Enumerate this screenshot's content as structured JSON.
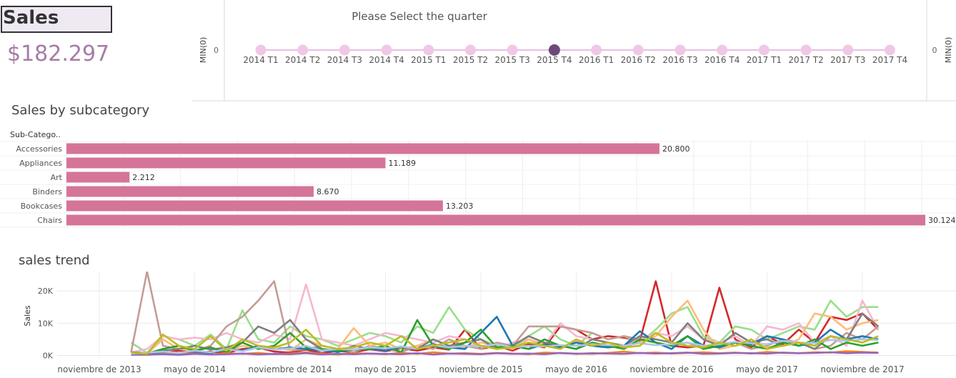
{
  "kpi": {
    "title": "Sales",
    "value": "$182.297"
  },
  "quarter_selector": {
    "title": "Please Select the quarter",
    "axis_label": "MIN(0)",
    "zero_label": "0",
    "quarters": [
      "2014 T1",
      "2014 T2",
      "2014 T3",
      "2014 T4",
      "2015 T1",
      "2015 T2",
      "2015 T3",
      "2015 T4",
      "2016 T1",
      "2016 T2",
      "2016 T3",
      "2016 T4",
      "2017 T1",
      "2017 T2",
      "2017 T3",
      "2017 T4"
    ],
    "selected": "2015 T4",
    "colors": {
      "dot": "#f0c8e6",
      "selected": "#6e4a7b",
      "line": "#e6bfe0"
    }
  },
  "subcategory_chart": {
    "title": "Sales by subcategory",
    "column_header": "Sub-Catego.."
  },
  "trend_chart": {
    "title": "sales trend"
  },
  "chart_data": [
    {
      "type": "bar",
      "orientation": "horizontal",
      "title": "Sales by subcategory",
      "row_header": "Sub-Catego..",
      "categories": [
        "Accessories",
        "Appliances",
        "Art",
        "Binders",
        "Bookcases",
        "Chairs"
      ],
      "values": [
        20800,
        11189,
        2212,
        8670,
        13203,
        30124
      ],
      "value_labels": [
        "20.800",
        "11.189",
        "2.212",
        "8.670",
        "13.203",
        "30.124"
      ],
      "xlim": [
        0,
        31000
      ],
      "color": "#d57499",
      "grid": true
    },
    {
      "type": "line",
      "title": "sales trend",
      "ylabel": "Sales",
      "ylim": [
        -1000,
        26000
      ],
      "yticks": [
        0,
        10000,
        20000
      ],
      "ytick_labels": [
        "0K",
        "10K",
        "20K"
      ],
      "x_labels": [
        "noviembre de 2013",
        "mayo de 2014",
        "noviembre de 2014",
        "mayo de 2015",
        "noviembre de 2015",
        "mayo de 2016",
        "noviembre de 2016",
        "mayo de 2017",
        "noviembre de 2017"
      ],
      "x_months": [
        "2014-01",
        "2014-02",
        "2014-03",
        "2014-04",
        "2014-05",
        "2014-06",
        "2014-07",
        "2014-08",
        "2014-09",
        "2014-10",
        "2014-11",
        "2014-12",
        "2015-01",
        "2015-02",
        "2015-03",
        "2015-04",
        "2015-05",
        "2015-06",
        "2015-07",
        "2015-08",
        "2015-09",
        "2015-10",
        "2015-11",
        "2015-12",
        "2016-01",
        "2016-02",
        "2016-03",
        "2016-04",
        "2016-05",
        "2016-06",
        "2016-07",
        "2016-08",
        "2016-09",
        "2016-10",
        "2016-11",
        "2016-12",
        "2017-01",
        "2017-02",
        "2017-03",
        "2017-04",
        "2017-05",
        "2017-06",
        "2017-07",
        "2017-08",
        "2017-09",
        "2017-10",
        "2017-11",
        "2017-12"
      ],
      "grid": true,
      "series": [
        {
          "color": "#d62728",
          "values": [
            500,
            400,
            700,
            1500,
            900,
            1200,
            800,
            2000,
            2500,
            1200,
            900,
            1800,
            700,
            1400,
            1000,
            1900,
            1300,
            2200,
            1500,
            2500,
            1800,
            8000,
            2000,
            3000,
            1500,
            3500,
            2500,
            9000,
            8000,
            5000,
            6000,
            5500,
            4500,
            23000,
            3000,
            2500,
            3000,
            21000,
            5000,
            2500,
            6000,
            3500,
            8000,
            4000,
            12000,
            11000,
            13000,
            8000
          ]
        },
        {
          "color": "#98df8a",
          "values": [
            4000,
            800,
            6000,
            5000,
            3000,
            6500,
            2000,
            14000,
            5000,
            4000,
            9000,
            6000,
            5000,
            3000,
            5000,
            7000,
            6000,
            4000,
            9000,
            7000,
            15000,
            8000,
            5000,
            3000,
            2000,
            6000,
            9000,
            5000,
            3000,
            7000,
            5000,
            6000,
            4000,
            8000,
            13000,
            15000,
            6000,
            4000,
            9000,
            8000,
            5000,
            7000,
            9000,
            8000,
            17000,
            12000,
            15000,
            15000
          ]
        },
        {
          "color": "#f7b6d2",
          "values": [
            1000,
            2000,
            6000,
            5000,
            5500,
            5000,
            7000,
            5000,
            4000,
            6500,
            5000,
            22000,
            5000,
            4000,
            3000,
            5000,
            7000,
            6000,
            5000,
            4000,
            6000,
            5000,
            3000,
            2000,
            4000,
            5000,
            3000,
            10000,
            6000,
            5000,
            4000,
            3000,
            5000,
            7000,
            6000,
            9000,
            5000,
            4000,
            6000,
            3000,
            9000,
            8000,
            10000,
            4000,
            6000,
            3000,
            17000,
            8000
          ]
        },
        {
          "color": "#c49c94",
          "values": [
            1000,
            26000,
            3000,
            2000,
            1500,
            3000,
            9000,
            12000,
            17000,
            23000,
            1500,
            2000,
            3000,
            2000,
            1000,
            3000,
            2000,
            1000,
            3000,
            2000,
            5000,
            3000,
            2000,
            4000,
            3000,
            9000,
            9000,
            9000,
            8000,
            7000,
            5000,
            6000,
            5000,
            4000,
            3000,
            4000,
            2000,
            3000,
            4000,
            2000,
            3000,
            5000,
            4000,
            2000,
            3000,
            7000,
            5000,
            9000
          ]
        },
        {
          "color": "#ffbb78",
          "values": [
            500,
            600,
            5000,
            2000,
            1500,
            2500,
            1000,
            3000,
            2000,
            3000,
            1500,
            5000,
            3000,
            2000,
            8500,
            3000,
            4000,
            2000,
            3000,
            5000,
            3000,
            2500,
            4000,
            3000,
            2000,
            5000,
            3500,
            2000,
            4500,
            3000,
            2500,
            3000,
            4000,
            6000,
            12000,
            17000,
            8000,
            2000,
            3000,
            4000,
            2500,
            3000,
            5000,
            13000,
            12000,
            8000,
            10000,
            11000
          ]
        },
        {
          "color": "#7f7f7f",
          "values": [
            1000,
            800,
            1500,
            2000,
            3000,
            1800,
            2500,
            4000,
            9000,
            7000,
            11000,
            5000,
            2000,
            1000,
            3000,
            2000,
            1500,
            2500,
            2000,
            5000,
            3000,
            4000,
            5000,
            2000,
            3000,
            6000,
            4000,
            3000,
            2000,
            5000,
            4000,
            3000,
            6000,
            5000,
            4000,
            10000,
            5000,
            3000,
            7000,
            4000,
            5000,
            3000,
            4000,
            2000,
            6000,
            5000,
            13000,
            9000
          ]
        },
        {
          "color": "#1f77b4",
          "values": [
            800,
            500,
            1000,
            600,
            1200,
            800,
            2000,
            1500,
            3000,
            1800,
            2500,
            2000,
            1500,
            1200,
            1800,
            2200,
            1500,
            2800,
            2000,
            3500,
            2500,
            2000,
            7000,
            12000,
            3000,
            2000,
            3500,
            2500,
            4000,
            3000,
            2500,
            3000,
            7500,
            4000,
            2000,
            6000,
            3000,
            2500,
            4000,
            3500,
            6000,
            5000,
            3000,
            4000,
            8000,
            5000,
            6000,
            5000
          ]
        },
        {
          "color": "#2ca02c",
          "values": [
            700,
            600,
            2000,
            3000,
            1500,
            2500,
            1000,
            4000,
            2000,
            3000,
            7000,
            2500,
            2000,
            1500,
            1800,
            2000,
            3000,
            1000,
            11000,
            3000,
            2000,
            4000,
            8000,
            2500,
            3000,
            2000,
            5000,
            3000,
            2000,
            4000,
            3000,
            2000,
            5000,
            4000,
            3000,
            6000,
            2000,
            3000,
            4000,
            3000,
            2000,
            4000,
            3000,
            5000,
            2000,
            4000,
            3000,
            4000
          ]
        },
        {
          "color": "#ff7f0e",
          "values": [
            300,
            200,
            500,
            400,
            600,
            300,
            700,
            500,
            800,
            400,
            600,
            1000,
            500,
            300,
            700,
            600,
            400,
            800,
            500,
            1000,
            600,
            700,
            500,
            800,
            600,
            400,
            900,
            700,
            600,
            500,
            800,
            1200,
            700,
            900,
            600,
            800,
            1000,
            700,
            900,
            600,
            1100,
            800,
            700,
            1000,
            900,
            1300,
            1100,
            900
          ]
        },
        {
          "color": "#9467bd",
          "values": [
            200,
            300,
            400,
            200,
            500,
            300,
            400,
            600,
            300,
            500,
            400,
            700,
            300,
            500,
            400,
            600,
            500,
            400,
            700,
            300,
            600,
            500,
            400,
            700,
            500,
            600,
            400,
            800,
            500,
            700,
            600,
            500,
            800,
            600,
            700,
            900,
            500,
            600,
            800,
            700,
            600,
            900,
            700,
            800,
            1000,
            700,
            900,
            800
          ]
        },
        {
          "color": "#aec7e8",
          "values": [
            600,
            900,
            1200,
            800,
            1500,
            1000,
            2000,
            1300,
            2500,
            1800,
            2200,
            3000,
            1500,
            2000,
            1800,
            2500,
            2200,
            2800,
            2000,
            3200,
            2500,
            3000,
            2800,
            3500,
            2500,
            3000,
            2800,
            3200,
            3000,
            3500,
            3200,
            3000,
            3800,
            3200,
            3500,
            4000,
            3000,
            3500,
            4200,
            3800,
            3500,
            4500,
            4000,
            3800,
            4800,
            4500,
            5000,
            4800
          ]
        },
        {
          "color": "#bcbd22",
          "values": [
            900,
            500,
            6500,
            3000,
            2000,
            6000,
            1500,
            5000,
            3000,
            2500,
            4000,
            8000,
            3000,
            2000,
            2500,
            4000,
            3000,
            6000,
            2000,
            3000,
            4000,
            5000,
            3000,
            2000,
            2500,
            4000,
            3000,
            2000,
            5000,
            3000,
            4000,
            2500,
            3000,
            7000,
            4000,
            3000,
            2500,
            4000,
            3000,
            5000,
            2000,
            3000,
            4000,
            3000,
            6000,
            5000,
            4000,
            6000
          ]
        }
      ]
    }
  ]
}
